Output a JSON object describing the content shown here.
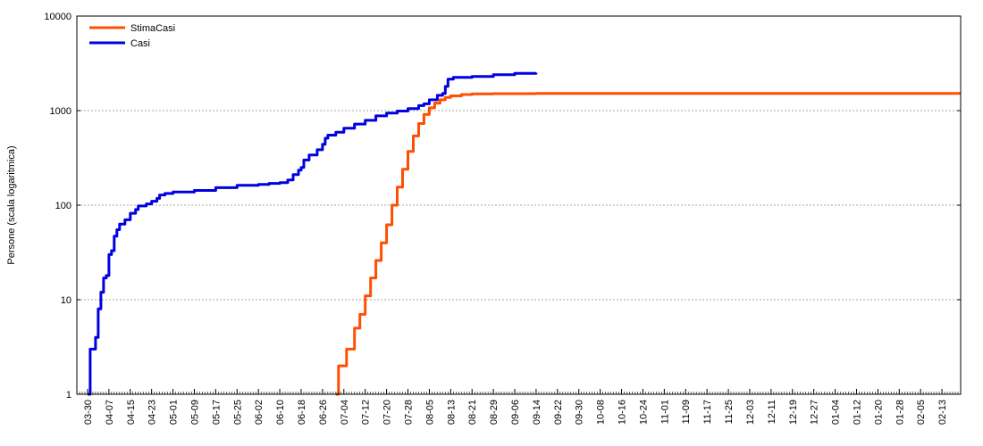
{
  "chart_data": {
    "type": "line",
    "title": "",
    "ylabel": "Persone (scala logaritmica)",
    "yscale": "log",
    "ylim": [
      1,
      10000
    ],
    "yticks": [
      "1",
      "10",
      "100",
      "1000",
      "10000"
    ],
    "xlim": [
      "03-26",
      "02-20"
    ],
    "xticks": [
      "03-30",
      "04-07",
      "04-15",
      "04-23",
      "05-01",
      "05-09",
      "05-17",
      "05-25",
      "06-02",
      "06-10",
      "06-18",
      "06-26",
      "07-04",
      "07-12",
      "07-20",
      "07-28",
      "08-05",
      "08-13",
      "08-21",
      "08-29",
      "09-06",
      "09-14",
      "09-22",
      "09-30",
      "10-08",
      "10-16",
      "10-24",
      "11-01",
      "11-09",
      "11-17",
      "11-25",
      "12-03",
      "12-11",
      "12-19",
      "12-27",
      "01-04",
      "01-12",
      "01-20",
      "01-28",
      "02-05",
      "02-13"
    ],
    "grid": "horizontal",
    "legend": "top-left",
    "series": [
      {
        "name": "StimaCasi",
        "color": "#ff4f00",
        "points": [
          [
            "07-01",
            1
          ],
          [
            "07-02",
            2
          ],
          [
            "07-04",
            2
          ],
          [
            "07-05",
            3
          ],
          [
            "07-06",
            3
          ],
          [
            "07-08",
            5
          ],
          [
            "07-10",
            7
          ],
          [
            "07-12",
            11
          ],
          [
            "07-14",
            17
          ],
          [
            "07-16",
            26
          ],
          [
            "07-18",
            40
          ],
          [
            "07-20",
            62
          ],
          [
            "07-22",
            100
          ],
          [
            "07-24",
            155
          ],
          [
            "07-26",
            240
          ],
          [
            "07-28",
            370
          ],
          [
            "07-30",
            540
          ],
          [
            "08-01",
            730
          ],
          [
            "08-03",
            910
          ],
          [
            "08-05",
            1070
          ],
          [
            "08-07",
            1200
          ],
          [
            "08-09",
            1300
          ],
          [
            "08-11",
            1380
          ],
          [
            "08-13",
            1430
          ],
          [
            "08-17",
            1480
          ],
          [
            "08-21",
            1500
          ],
          [
            "08-29",
            1510
          ],
          [
            "09-14",
            1520
          ],
          [
            "10-15",
            1520
          ],
          [
            "12-15",
            1520
          ],
          [
            "02-20",
            1520
          ]
        ]
      },
      {
        "name": "Casi",
        "color": "#0000e0",
        "points": [
          [
            "03-30",
            1
          ],
          [
            "03-31",
            3
          ],
          [
            "04-01",
            3
          ],
          [
            "04-02",
            4
          ],
          [
            "04-03",
            8
          ],
          [
            "04-04",
            12
          ],
          [
            "04-05",
            17
          ],
          [
            "04-06",
            18
          ],
          [
            "04-07",
            30
          ],
          [
            "04-08",
            33
          ],
          [
            "04-09",
            47
          ],
          [
            "04-10",
            55
          ],
          [
            "04-11",
            63
          ],
          [
            "04-13",
            70
          ],
          [
            "04-15",
            82
          ],
          [
            "04-17",
            90
          ],
          [
            "04-18",
            98
          ],
          [
            "04-21",
            103
          ],
          [
            "04-23",
            110
          ],
          [
            "04-25",
            118
          ],
          [
            "04-26",
            128
          ],
          [
            "04-28",
            133
          ],
          [
            "05-01",
            138
          ],
          [
            "05-09",
            143
          ],
          [
            "05-17",
            153
          ],
          [
            "05-25",
            162
          ],
          [
            "06-02",
            166
          ],
          [
            "06-06",
            170
          ],
          [
            "06-10",
            173
          ],
          [
            "06-13",
            185
          ],
          [
            "06-15",
            210
          ],
          [
            "06-17",
            235
          ],
          [
            "06-18",
            250
          ],
          [
            "06-19",
            300
          ],
          [
            "06-21",
            340
          ],
          [
            "06-24",
            385
          ],
          [
            "06-26",
            440
          ],
          [
            "06-27",
            510
          ],
          [
            "06-28",
            550
          ],
          [
            "07-01",
            590
          ],
          [
            "07-04",
            650
          ],
          [
            "07-08",
            720
          ],
          [
            "07-12",
            790
          ],
          [
            "07-16",
            880
          ],
          [
            "07-20",
            940
          ],
          [
            "07-24",
            990
          ],
          [
            "07-28",
            1050
          ],
          [
            "08-01",
            1130
          ],
          [
            "08-03",
            1180
          ],
          [
            "08-05",
            1300
          ],
          [
            "08-08",
            1450
          ],
          [
            "08-10",
            1520
          ],
          [
            "08-11",
            1800
          ],
          [
            "08-12",
            2150
          ],
          [
            "08-14",
            2250
          ],
          [
            "08-21",
            2300
          ],
          [
            "08-29",
            2400
          ],
          [
            "09-06",
            2480
          ],
          [
            "09-14",
            2520
          ]
        ]
      }
    ]
  }
}
